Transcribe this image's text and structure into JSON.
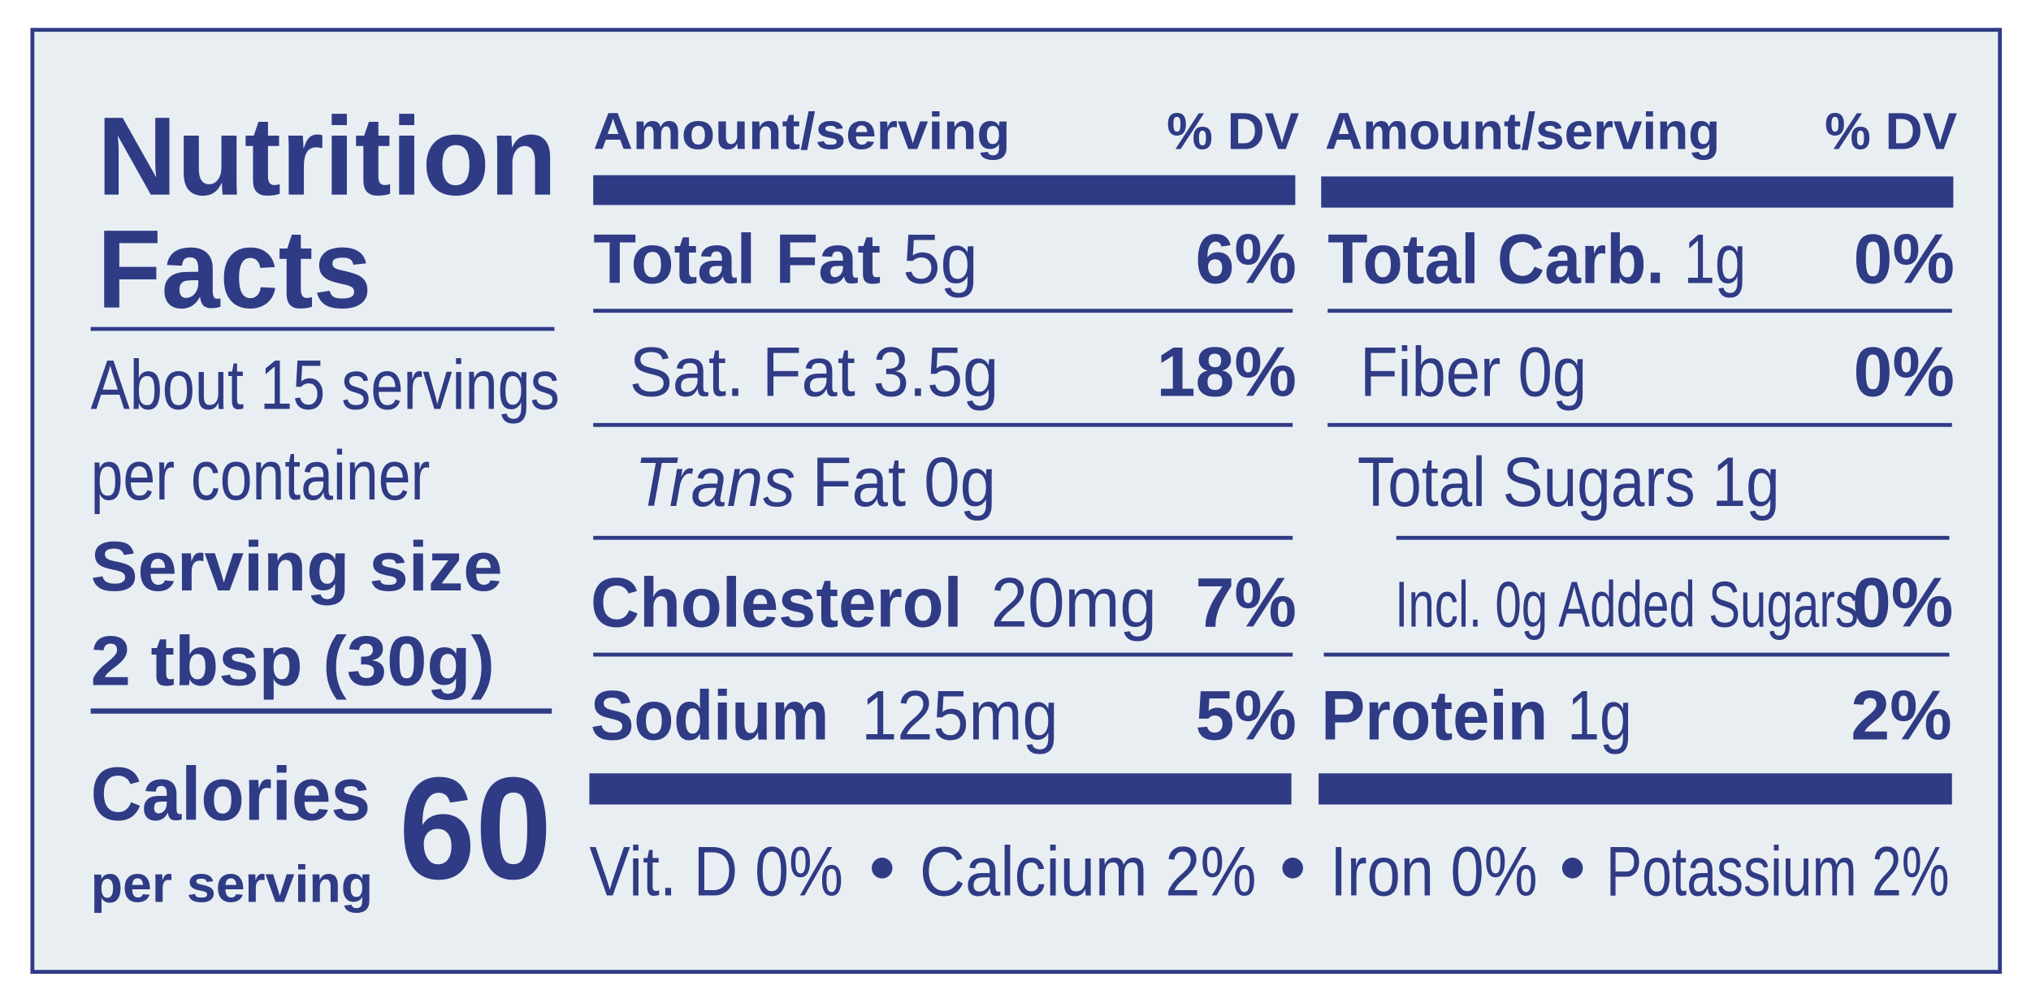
{
  "title": [
    "Nutrition",
    "Facts"
  ],
  "servings": [
    "About 15 servings",
    "per container"
  ],
  "serving_size": [
    "Serving size",
    "2 tbsp (30g)"
  ],
  "calories": {
    "label": "Calories",
    "sublabel": "per serving",
    "value": 60
  },
  "left": {
    "header": {
      "amount": "Amount/serving",
      "dv": "% DV"
    },
    "rows": [
      {
        "name": "Total Fat",
        "amount": "5g",
        "dv": "6%"
      },
      {
        "name": "Sat. Fat 3.5g",
        "dv": "18%"
      },
      {
        "name_italic": "Trans",
        "name": "Fat 0g"
      },
      {
        "name": "Cholesterol",
        "amount": "20mg",
        "dv": "7%"
      },
      {
        "name": "Sodium",
        "amount": "125mg",
        "dv": "5%"
      }
    ]
  },
  "right": {
    "header": {
      "amount": "Amount/serving",
      "dv": "% DV"
    },
    "rows": [
      {
        "name": "Total Carb.",
        "amount": "1g",
        "dv": "0%"
      },
      {
        "name": "Fiber 0g",
        "dv": "0%"
      },
      {
        "name": "Total Sugars 1g"
      },
      {
        "name": "Incl. 0g Added Sugars",
        "dv": "0%"
      },
      {
        "name": "Protein",
        "amount": "1g",
        "dv": "2%"
      }
    ]
  },
  "footer": [
    "Vit. D 0%",
    "Calcium 2%",
    "Iron 0%",
    "Potassium 2%"
  ]
}
